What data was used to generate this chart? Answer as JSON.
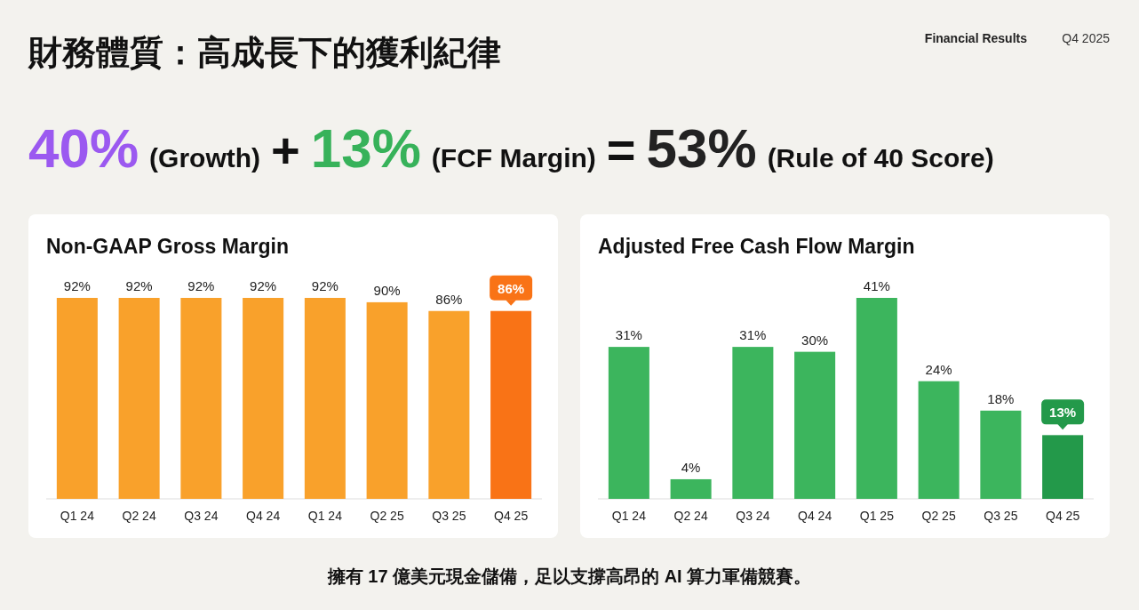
{
  "chart_data": [
    {
      "type": "other",
      "title": "財務體質：高成長下的獲利紀律",
      "annotations": [
        "Financial Results",
        "Q4 2025",
        "40%",
        "(Growth)",
        "+",
        "13%",
        "(FCF Margin)",
        "=",
        "53%",
        "(Rule of 40 Score)",
        "擁有 17 億美元現金儲備，足以支撐高昂的 AI 算力軍備競賽。"
      ]
    },
    {
      "type": "bar",
      "title": "Non-GAAP Gross Margin",
      "categories": [
        "Q1 24",
        "Q2 24",
        "Q3 24",
        "Q4 24",
        "Q1 24",
        "Q2 25",
        "Q3 25",
        "Q4 25"
      ],
      "values": [
        92,
        92,
        92,
        92,
        92,
        90,
        86,
        86
      ],
      "value_labels": [
        "92%",
        "92%",
        "92%",
        "92%",
        "92%",
        "90%",
        "86%",
        "86%"
      ],
      "colors": [
        "#f9a12b",
        "#f9a12b",
        "#f9a12b",
        "#f9a12b",
        "#f9a12b",
        "#f9a12b",
        "#f9a12b",
        "#f97316"
      ]
    },
    {
      "type": "bar",
      "title": "Adjusted Free Cash Flow Margin",
      "categories": [
        "Q1 24",
        "Q2 24",
        "Q3 24",
        "Q4 24",
        "Q1 25",
        "Q2 25",
        "Q3 25",
        "Q4 25"
      ],
      "values": [
        31,
        4,
        31,
        30,
        41,
        24,
        18,
        13
      ],
      "value_labels": [
        "31%",
        "4%",
        "31%",
        "30%",
        "41%",
        "24%",
        "18%",
        "13%"
      ],
      "colors": [
        "#3cb55d",
        "#3cb55d",
        "#3cb55d",
        "#3cb55d",
        "#3cb55d",
        "#3cb55d",
        "#3cb55d",
        "#23994a"
      ]
    }
  ]
}
